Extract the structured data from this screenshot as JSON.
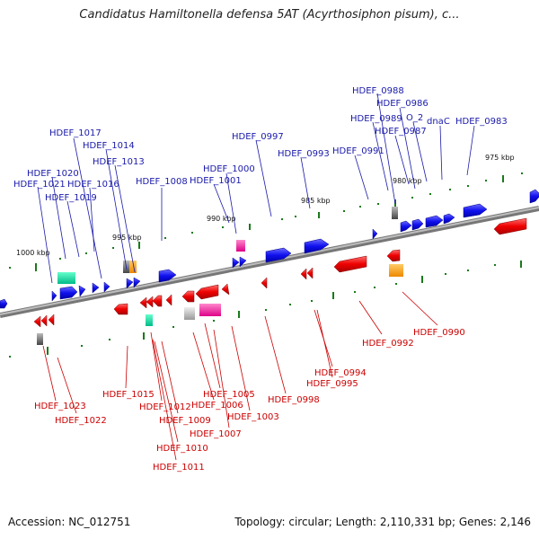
{
  "title": "Candidatus Hamiltonella defensa 5AT (Acyrthosiphon pisum), c...",
  "footer": {
    "accession": "Accession: NC_012751",
    "topology": "Topology: circular; Length: 2,110,331 bp; Genes: 2,146"
  },
  "colors": {
    "forward": "#1a1aee",
    "reverse": "#ee1111",
    "tick": "#1a7a1a",
    "backbone": "#888888",
    "forward_label": "#1a1aaa",
    "reverse_label": "#cc0000"
  },
  "scale_labels": [
    "1000 kbp",
    "995 kbp",
    "990 kbp",
    "985 kbp",
    "980 kbp",
    "975 kbp"
  ],
  "forward_gene_labels": [
    "HDEF_1017",
    "HDEF_1014",
    "HDEF_1013",
    "HDEF_1020",
    "HDEF_1021",
    "HDEF_1016",
    "HDEF_1019",
    "HDEF_1008",
    "HDEF_1000",
    "HDEF_1001",
    "HDEF_0997",
    "HDEF_0993",
    "HDEF_0991",
    "HDEF_0988",
    "HDEF_0986",
    "HDEF_0989",
    "O_2",
    "dnaC",
    "HDEF_0983",
    "HDEF_0987"
  ],
  "reverse_gene_labels": [
    "HDEF_1023",
    "HDEF_1022",
    "HDEF_1015",
    "HDEF_1012",
    "HDEF_1009",
    "HDEF_1010",
    "HDEF_1011",
    "HDEF_1005",
    "HDEF_1006",
    "HDEF_1007",
    "HDEF_1003",
    "HDEF_0998",
    "HDEF_0994",
    "HDEF_0995",
    "HDEF_0992",
    "HDEF_0990"
  ]
}
